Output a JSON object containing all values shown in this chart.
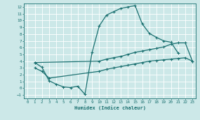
{
  "xlabel": "Humidex (Indice chaleur)",
  "bg_color": "#cce8e8",
  "line_color": "#1a7070",
  "grid_color": "#ffffff",
  "xlim": [
    -0.5,
    23.5
  ],
  "ylim": [
    -1.5,
    12.5
  ],
  "xticks": [
    0,
    1,
    2,
    3,
    4,
    5,
    6,
    7,
    8,
    9,
    10,
    11,
    12,
    13,
    14,
    15,
    16,
    17,
    18,
    19,
    20,
    21,
    22,
    23
  ],
  "yticks": [
    -1,
    0,
    1,
    2,
    3,
    4,
    5,
    6,
    7,
    8,
    9,
    10,
    11,
    12
  ],
  "line1_x": [
    1,
    2,
    3,
    4,
    5,
    6,
    7,
    8,
    9,
    10,
    11,
    12,
    13,
    14,
    15,
    16,
    17,
    18,
    19,
    20,
    21
  ],
  "line1_y": [
    3.8,
    3.1,
    1.1,
    0.6,
    0.2,
    0.1,
    0.3,
    -0.9,
    5.3,
    9.2,
    10.8,
    11.3,
    11.8,
    12.0,
    12.2,
    9.5,
    8.1,
    7.5,
    7.0,
    6.8,
    5.2
  ],
  "line2_x": [
    1,
    10,
    11,
    12,
    13,
    14,
    15,
    16,
    17,
    18,
    19,
    20,
    21,
    22,
    23
  ],
  "line2_y": [
    3.8,
    4.0,
    4.3,
    4.5,
    4.7,
    5.0,
    5.3,
    5.5,
    5.7,
    5.9,
    6.1,
    6.5,
    6.7,
    6.7,
    4.0
  ],
  "line3_x": [
    1,
    2,
    3,
    10,
    11,
    12,
    13,
    14,
    15,
    16,
    17,
    18,
    19,
    20,
    21,
    22,
    23
  ],
  "line3_y": [
    3.0,
    2.5,
    1.5,
    2.5,
    2.8,
    3.0,
    3.2,
    3.4,
    3.6,
    3.8,
    4.0,
    4.1,
    4.2,
    4.3,
    4.4,
    4.5,
    4.0
  ]
}
